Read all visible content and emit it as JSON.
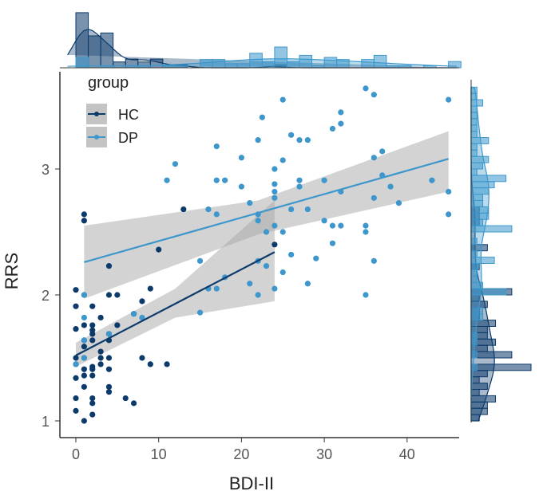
{
  "chart_data": {
    "type": "scatter",
    "xlabel": "BDI-II",
    "ylabel": "RRS",
    "xlim": [
      -1.5,
      46.5
    ],
    "ylim": [
      0.88,
      3.78
    ],
    "xticks": [
      0,
      10,
      20,
      30,
      40
    ],
    "yticks": [
      1,
      2,
      3
    ],
    "legend": {
      "title": "group",
      "position": "top-left"
    },
    "marginals": "histogram with density, top and right",
    "series": [
      {
        "name": "HC",
        "color": "#0b3a6b",
        "points": [
          [
            1,
            2.64
          ],
          [
            1,
            2.59
          ],
          [
            13,
            2.68
          ],
          [
            10,
            2.36
          ],
          [
            4,
            2.23
          ],
          [
            24,
            2.4
          ],
          [
            0,
            2.04
          ],
          [
            1,
            2.0
          ],
          [
            4,
            2.0
          ],
          [
            5,
            2.0
          ],
          [
            9,
            2.05
          ],
          [
            8,
            1.95
          ],
          [
            0,
            1.91
          ],
          [
            2,
            1.91
          ],
          [
            3,
            1.82
          ],
          [
            7,
            1.85
          ],
          [
            0,
            1.73
          ],
          [
            1,
            1.76
          ],
          [
            2,
            1.76
          ],
          [
            2,
            1.72
          ],
          [
            2,
            1.69
          ],
          [
            5,
            1.76
          ],
          [
            4,
            1.69
          ],
          [
            1,
            1.64
          ],
          [
            1,
            1.59
          ],
          [
            2,
            1.64
          ],
          [
            4,
            1.64
          ],
          [
            3,
            1.55
          ],
          [
            0,
            1.5
          ],
          [
            1,
            1.5
          ],
          [
            3,
            1.5
          ],
          [
            4,
            1.5
          ],
          [
            8,
            1.5
          ],
          [
            0,
            1.45
          ],
          [
            3,
            1.45
          ],
          [
            9,
            1.45
          ],
          [
            11,
            1.45
          ],
          [
            1,
            1.41
          ],
          [
            2,
            1.43
          ],
          [
            2,
            1.41
          ],
          [
            4,
            1.41
          ],
          [
            1,
            1.36
          ],
          [
            2,
            1.36
          ],
          [
            0,
            1.34
          ],
          [
            1,
            1.27
          ],
          [
            4,
            1.27
          ],
          [
            4,
            1.23
          ],
          [
            0,
            1.18
          ],
          [
            2,
            1.18
          ],
          [
            2,
            1.14
          ],
          [
            6,
            1.18
          ],
          [
            7,
            1.14
          ],
          [
            0,
            1.08
          ],
          [
            2,
            1.05
          ],
          [
            1,
            1.0
          ]
        ],
        "fit": {
          "x": [
            0,
            24
          ],
          "y": [
            1.52,
            2.34
          ]
        },
        "ci": {
          "x": [
            0,
            12,
            24
          ],
          "lower": [
            1.43,
            1.82,
            1.95
          ],
          "upper": [
            1.62,
            2.05,
            2.75
          ]
        }
      },
      {
        "name": "DP",
        "color": "#3d97cc",
        "points": [
          [
            35,
            3.64
          ],
          [
            36,
            3.59
          ],
          [
            45,
            3.55
          ],
          [
            25,
            3.55
          ],
          [
            22.5,
            3.41
          ],
          [
            32,
            3.45
          ],
          [
            32,
            3.36
          ],
          [
            31,
            3.32
          ],
          [
            26,
            3.27
          ],
          [
            27,
            3.23
          ],
          [
            28,
            3.23
          ],
          [
            22,
            3.23
          ],
          [
            17,
            3.18
          ],
          [
            12,
            3.04
          ],
          [
            20,
            3.09
          ],
          [
            25,
            3.07
          ],
          [
            24,
            3.0
          ],
          [
            36,
            3.09
          ],
          [
            37,
            3.14
          ],
          [
            11,
            2.91
          ],
          [
            17,
            2.91
          ],
          [
            18,
            2.91
          ],
          [
            20,
            2.86
          ],
          [
            24,
            2.88
          ],
          [
            24,
            2.82
          ],
          [
            27,
            2.91
          ],
          [
            27,
            2.86
          ],
          [
            30,
            2.91
          ],
          [
            37,
            2.95
          ],
          [
            38,
            2.86
          ],
          [
            43,
            2.91
          ],
          [
            45,
            2.82
          ],
          [
            32,
            2.82
          ],
          [
            24,
            2.77
          ],
          [
            21,
            2.73
          ],
          [
            36,
            2.77
          ],
          [
            39,
            2.73
          ],
          [
            45,
            2.64
          ],
          [
            16,
            2.68
          ],
          [
            17,
            2.64
          ],
          [
            22,
            2.64
          ],
          [
            22,
            2.59
          ],
          [
            26,
            2.68
          ],
          [
            28,
            2.68
          ],
          [
            30,
            2.59
          ],
          [
            31,
            2.55
          ],
          [
            32,
            2.55
          ],
          [
            35,
            2.55
          ],
          [
            35,
            2.5
          ],
          [
            24,
            2.55
          ],
          [
            23,
            2.5
          ],
          [
            25,
            2.5
          ],
          [
            31,
            2.41
          ],
          [
            26,
            2.32
          ],
          [
            29,
            2.29
          ],
          [
            36,
            2.27
          ],
          [
            15,
            2.27
          ],
          [
            22,
            2.27
          ],
          [
            23,
            2.23
          ],
          [
            18,
            2.14
          ],
          [
            25,
            2.18
          ],
          [
            21,
            2.09
          ],
          [
            16,
            2.05
          ],
          [
            17,
            2.05
          ],
          [
            24,
            2.05
          ],
          [
            28,
            2.09
          ],
          [
            22,
            2.0
          ],
          [
            35,
            2.0
          ],
          [
            15,
            1.86
          ],
          [
            1,
            1.82
          ],
          [
            8,
            1.82
          ],
          [
            1,
            2.0
          ],
          [
            1,
            1.64
          ],
          [
            1,
            1.5
          ],
          [
            0,
            1.45
          ],
          [
            4,
            1.69
          ],
          [
            7,
            1.85
          ]
        ],
        "fit": {
          "x": [
            1,
            45
          ],
          "y": [
            2.26,
            3.08
          ]
        },
        "ci": {
          "x": [
            1,
            22,
            45
          ],
          "lower": [
            1.97,
            2.48,
            2.82
          ],
          "upper": [
            2.55,
            2.75,
            3.3
          ]
        }
      }
    ]
  }
}
